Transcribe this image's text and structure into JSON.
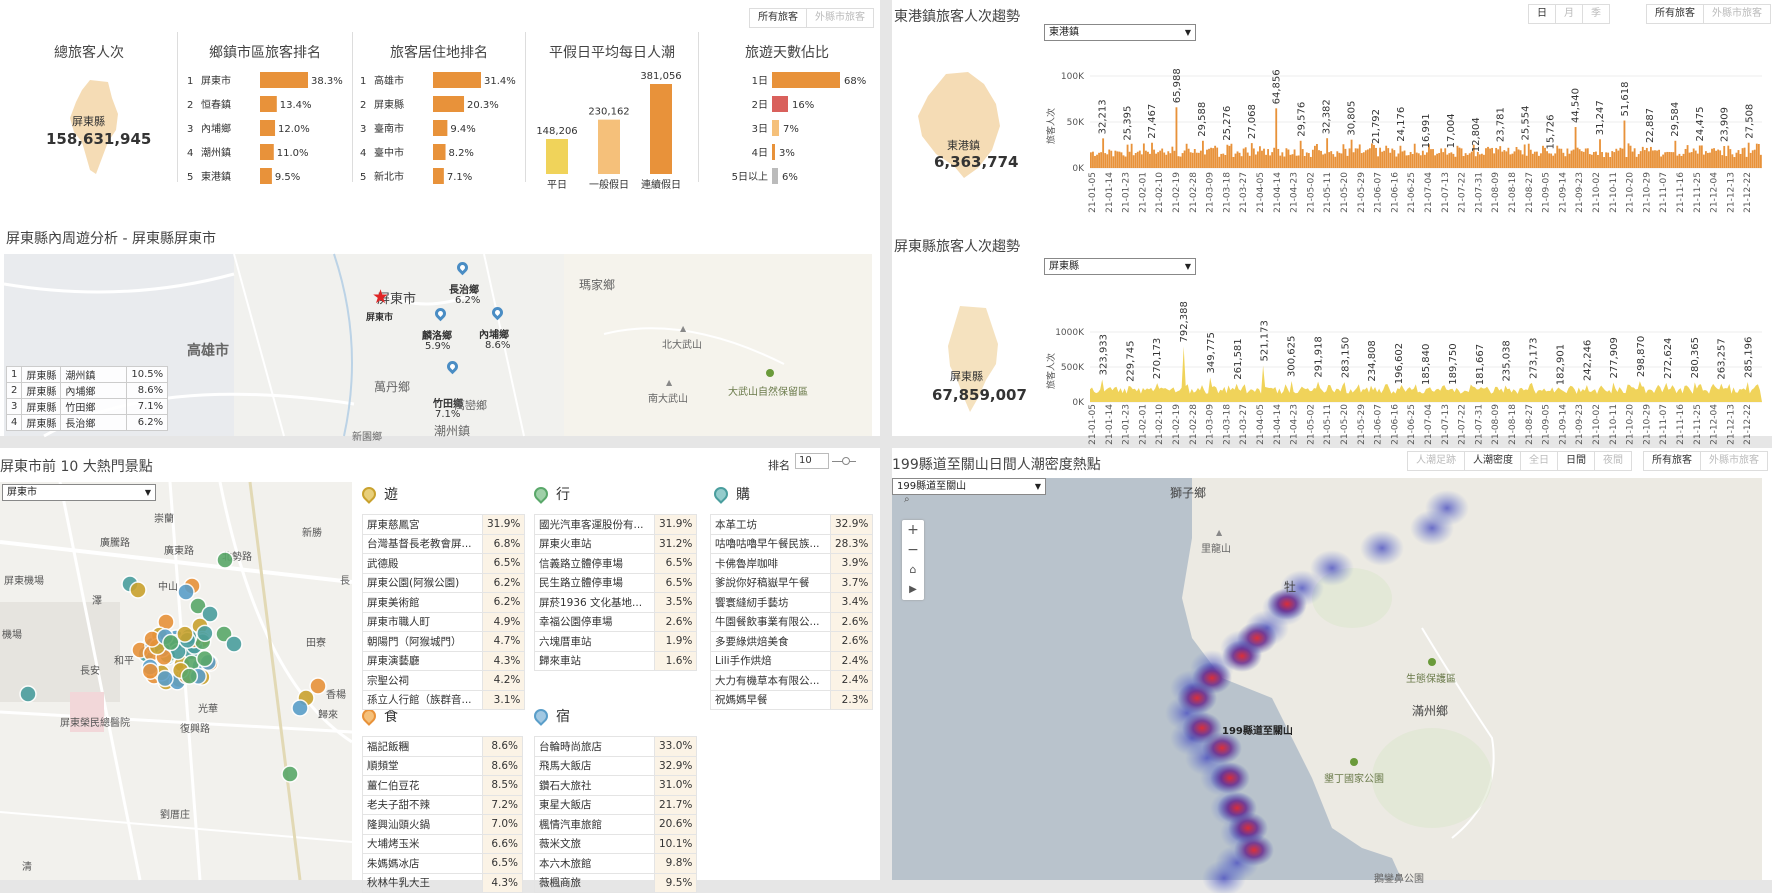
{
  "kpi": {
    "title": "總旅客人次",
    "region": "屏東縣",
    "value": "158,631,945",
    "toggle": [
      "所有旅客",
      "外縣市旅客"
    ]
  },
  "towns": {
    "title": "鄉鎮市區旅客排名",
    "rows": [
      {
        "rank": "1",
        "name": "屏東市",
        "pct": "38.3%",
        "v": 38.3
      },
      {
        "rank": "2",
        "name": "恒春鎮",
        "pct": "13.4%",
        "v": 13.4
      },
      {
        "rank": "3",
        "name": "內埔鄉",
        "pct": "12.0%",
        "v": 12.0
      },
      {
        "rank": "4",
        "name": "潮州鎮",
        "pct": "11.0%",
        "v": 11.0
      },
      {
        "rank": "5",
        "name": "東港鎮",
        "pct": "9.5%",
        "v": 9.5
      }
    ]
  },
  "residence": {
    "title": "旅客居住地排名",
    "rows": [
      {
        "rank": "1",
        "name": "高雄市",
        "pct": "31.4%",
        "v": 31.4
      },
      {
        "rank": "2",
        "name": "屏東縣",
        "pct": "20.3%",
        "v": 20.3
      },
      {
        "rank": "3",
        "name": "臺南市",
        "pct": "9.4%",
        "v": 9.4
      },
      {
        "rank": "4",
        "name": "臺中市",
        "pct": "8.2%",
        "v": 8.2
      },
      {
        "rank": "5",
        "name": "新北市",
        "pct": "7.1%",
        "v": 7.1
      }
    ]
  },
  "daily": {
    "title": "平假日平均每日人潮",
    "bars": [
      {
        "label": "平日",
        "value": 148206,
        "text": "148,206",
        "color": "#f0d35a"
      },
      {
        "label": "一般假日",
        "value": 230162,
        "text": "230,162",
        "color": "#f5c07a"
      },
      {
        "label": "連續假日",
        "value": 381056,
        "text": "381,056",
        "color": "#e8923a"
      }
    ]
  },
  "days": {
    "title": "旅遊天數佔比",
    "rows": [
      {
        "name": "1日",
        "pct": "68%",
        "v": 68,
        "color": "#e8923a"
      },
      {
        "name": "2日",
        "pct": "16%",
        "v": 16,
        "color": "#d9605c"
      },
      {
        "name": "3日",
        "pct": "7%",
        "v": 7,
        "color": "#f5c07a"
      },
      {
        "name": "4日",
        "pct": "3%",
        "v": 3,
        "color": "#e8923a"
      },
      {
        "name": "5日以上",
        "pct": "6%",
        "v": 6,
        "color": "#bbbbbb"
      }
    ]
  },
  "inner": {
    "title": "屏東縣內周遊分析 - 屏東縣屏東市",
    "labels": {
      "kaohsiung": "高雄市",
      "pingtung": "屏東市",
      "pingtung_sub": "屏東市",
      "changzhi": "長治鄉",
      "changzhi_pct": "6.2%",
      "linluo": "麟洛鄉",
      "linluo_pct": "5.9%",
      "neipu": "內埔鄉",
      "neipu_pct": "8.6%",
      "zhutian": "竹田鄉",
      "zhutian_pct": "7.1%",
      "wandan": "萬丹鄉",
      "majia": "瑪家鄉",
      "beidawu": "北大武山",
      "nandawu": "南大武山",
      "reserve": "大武山自然保留區",
      "wanluan": "萬巒鄉",
      "chaozhou": "潮州鎮",
      "xinyuan": "新園鄉"
    },
    "table": [
      {
        "r": "1",
        "c": "屏東縣",
        "t": "潮州鎮",
        "p": "10.5%"
      },
      {
        "r": "2",
        "c": "屏東縣",
        "t": "內埔鄉",
        "p": "8.6%"
      },
      {
        "r": "3",
        "c": "屏東縣",
        "t": "竹田鄉",
        "p": "7.1%"
      },
      {
        "r": "4",
        "c": "屏東縣",
        "t": "長治鄉",
        "p": "6.2%"
      }
    ]
  },
  "donggang": {
    "title": "東港鎮旅客人次趨勢",
    "select": "東港鎮",
    "region": "東港鎮",
    "total": "6,363,774",
    "toggle1": [
      "日",
      "月",
      "季"
    ],
    "toggle2": [
      "所有旅客",
      "外縣市旅客"
    ]
  },
  "pingtungTrend": {
    "title": "屏東縣旅客人次趨勢",
    "select": "屏東縣",
    "region": "屏東縣",
    "total": "67,859,007"
  },
  "chart_data": [
    {
      "type": "bar",
      "title": "東港鎮旅客人次趨勢",
      "ylabel": "旅客人次",
      "ylim": [
        0,
        100000
      ],
      "yticks": [
        "0K",
        "50K",
        "100K"
      ],
      "color": "#e8923a",
      "x": [
        "21-01-05",
        "21-01-14",
        "21-01-23",
        "21-02-01",
        "21-02-10",
        "21-02-19",
        "21-02-28",
        "21-03-09",
        "21-03-18",
        "21-03-27",
        "21-04-05",
        "21-04-14",
        "21-04-23",
        "21-05-02",
        "21-05-11",
        "21-05-20",
        "21-05-29",
        "21-06-07",
        "21-06-16",
        "21-06-25",
        "21-07-04",
        "21-07-13",
        "21-07-22",
        "21-07-31",
        "21-08-09",
        "21-08-18",
        "21-08-27",
        "21-09-05",
        "21-09-14",
        "21-09-23",
        "21-10-02",
        "21-10-11",
        "21-10-20",
        "21-10-29",
        "21-11-07",
        "21-11-16",
        "21-11-25",
        "21-12-04",
        "21-12-13",
        "21-12-22"
      ],
      "labeled": [
        32213,
        25395,
        27467,
        65988,
        29588,
        25276,
        27068,
        64856,
        29576,
        32382,
        30805,
        21792,
        24176,
        16991,
        17004,
        12804,
        23781,
        25554,
        15726,
        44540,
        31247,
        51618,
        22887,
        29584,
        24475,
        23909,
        27508
      ],
      "labels": [
        "32,213",
        "25,395",
        "27,467",
        "65,988",
        "29,588",
        "25,276",
        "27,068",
        "64,856",
        "29,576",
        "32,382",
        "30,805",
        "21,792",
        "24,176",
        "16,991",
        "17,004",
        "12,804",
        "23,781",
        "25,554",
        "15,726",
        "44,540",
        "31,247",
        "51,618",
        "22,887",
        "29,584",
        "24,475",
        "23,909",
        "27,508"
      ]
    },
    {
      "type": "area",
      "title": "屏東縣旅客人次趨勢",
      "ylabel": "旅客人次",
      "ylim": [
        0,
        1000000
      ],
      "yticks": [
        "0K",
        "500K",
        "1000K"
      ],
      "color": "#f0d35a",
      "x": [
        "21-01-05",
        "21-01-14",
        "21-01-23",
        "21-02-01",
        "21-02-10",
        "21-02-19",
        "21-02-28",
        "21-03-09",
        "21-03-18",
        "21-03-27",
        "21-04-05",
        "21-04-14",
        "21-04-23",
        "21-05-02",
        "21-05-11",
        "21-05-20",
        "21-05-29",
        "21-06-07",
        "21-06-16",
        "21-06-25",
        "21-07-04",
        "21-07-13",
        "21-07-22",
        "21-07-31",
        "21-08-09",
        "21-08-18",
        "21-08-27",
        "21-09-05",
        "21-09-14",
        "21-09-23",
        "21-10-02",
        "21-10-11",
        "21-10-20",
        "21-10-29",
        "21-11-07",
        "21-11-16",
        "21-11-25",
        "21-12-04",
        "21-12-13",
        "21-12-22"
      ],
      "labeled": [
        323933,
        229745,
        270173,
        792388,
        349775,
        261581,
        521173,
        300625,
        291918,
        283150,
        234808,
        196602,
        185840,
        189750,
        181667,
        235038,
        273173,
        182901,
        242246,
        277909,
        298870,
        272624,
        280365,
        263257,
        285196
      ],
      "labels": [
        "323,933",
        "229,745",
        "270,173",
        "792,388",
        "349,775",
        "261,581",
        "521,173",
        "300,625",
        "291,918",
        "283,150",
        "234,808",
        "196,602",
        "185,840",
        "189,750",
        "181,667",
        "235,038",
        "273,173",
        "182,901",
        "242,246",
        "277,909",
        "298,870",
        "272,624",
        "280,365",
        "263,257",
        "285,196"
      ]
    }
  ],
  "spots": {
    "title": "屏東市前 10 大熱門景點",
    "rankLabel": "排名",
    "rankValue": "10",
    "select": "屏東市",
    "mapLabels": [
      "崇蘭",
      "廣騰路",
      "屏東機場",
      "廣東路",
      "北勢路",
      "新勝",
      "中山",
      "長",
      "澤",
      "田寮",
      "香楊",
      "和平",
      "長安",
      "光華",
      "屏東榮民總醫院",
      "復興路",
      "歸來",
      "劉厝庄",
      "機場",
      "清"
    ],
    "cats": [
      {
        "key": "you",
        "name": "遊",
        "color": "#c9a22e",
        "rows": [
          [
            "屏東慈鳳宮",
            "31.9%"
          ],
          [
            "台灣基督長老教會屏...",
            "6.8%"
          ],
          [
            "武德殿",
            "6.5%"
          ],
          [
            "屏東公園(阿猴公園)",
            "6.2%"
          ],
          [
            "屏東美術館",
            "6.2%"
          ],
          [
            "屏東市職人町",
            "4.9%"
          ],
          [
            "朝陽門（阿猴城門）",
            "4.7%"
          ],
          [
            "屏東演藝廳",
            "4.3%"
          ],
          [
            "宗聖公祠",
            "4.2%"
          ],
          [
            "孫立人行館（族群音...",
            "3.1%"
          ]
        ]
      },
      {
        "key": "xing",
        "name": "行",
        "color": "#5aa86a",
        "rows": [
          [
            "國光汽車客運股份有...",
            "31.9%"
          ],
          [
            "屏東火車站",
            "31.2%"
          ],
          [
            "信義路立體停車場",
            "6.5%"
          ],
          [
            "民生路立體停車場",
            "6.5%"
          ],
          [
            "屏菸1936 文化基地...",
            "3.5%"
          ],
          [
            "幸福公園停車場",
            "2.6%"
          ],
          [
            "六塊厝車站",
            "1.9%"
          ],
          [
            "歸來車站",
            "1.6%"
          ]
        ]
      },
      {
        "key": "gou",
        "name": "購",
        "color": "#4a9e9e",
        "rows": [
          [
            "本革工坊",
            "32.9%"
          ],
          [
            "咕嚕咕嚕早午餐民族...",
            "28.3%"
          ],
          [
            "卡佛魯岸咖啡",
            "3.9%"
          ],
          [
            "爹說你好稿嶽早午餐",
            "3.7%"
          ],
          [
            "饗寰縫紉手藝坊",
            "3.4%"
          ],
          [
            "牛園餐飲事業有限公...",
            "2.6%"
          ],
          [
            "多要綠烘焙美食",
            "2.6%"
          ],
          [
            "Lili手作烘焙",
            "2.4%"
          ],
          [
            "大力有機草本有限公...",
            "2.4%"
          ],
          [
            "祝媽媽早餐",
            "2.3%"
          ]
        ]
      },
      {
        "key": "shi",
        "name": "食",
        "color": "#e8923a",
        "rows": [
          [
            "福記飯糰",
            "8.6%"
          ],
          [
            "順頻堂",
            "8.6%"
          ],
          [
            "薑仁伯豆花",
            "8.5%"
          ],
          [
            "老夫子甜不辣",
            "7.2%"
          ],
          [
            "隆興汕頭火鍋",
            "7.0%"
          ],
          [
            "大埔烤玉米",
            "6.6%"
          ],
          [
            "朱媽媽冰店",
            "6.5%"
          ],
          [
            "秋林牛乳大王",
            "4.3%"
          ]
        ]
      },
      {
        "key": "su",
        "name": "宿",
        "color": "#5a9ec9",
        "rows": [
          [
            "台輪時尚旅店",
            "33.0%"
          ],
          [
            "飛馬大飯店",
            "32.9%"
          ],
          [
            "鑽石大旅社",
            "31.0%"
          ],
          [
            "東星大飯店",
            "21.7%"
          ],
          [
            "楓情汽車旅館",
            "20.6%"
          ],
          [
            "薇米文旅",
            "10.1%"
          ],
          [
            "本六木旅館",
            "9.8%"
          ],
          [
            "薇楓商旅",
            "9.5%"
          ]
        ]
      }
    ]
  },
  "heat": {
    "title": "199縣道至關山日間人潮密度熱點",
    "select": "199縣道至關山",
    "toggleA": [
      "人潮足跡",
      "人潮密度"
    ],
    "toggleB": [
      "全日",
      "日間",
      "夜間"
    ],
    "toggleC": [
      "所有旅客",
      "外縣市旅客"
    ],
    "labels": {
      "shizi": "獅子鄉",
      "lilong": "里龍山",
      "mu": "牡",
      "reserve": "生態保護區",
      "manzhou": "滿州鄉",
      "route": "199縣道至關山",
      "park": "墾丁國家公園",
      "eluanbi": "鵝鑾鼻公園"
    }
  }
}
